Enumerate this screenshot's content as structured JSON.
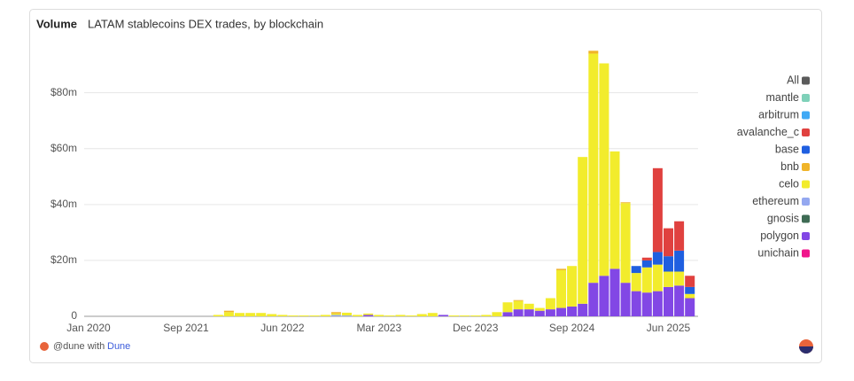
{
  "chart_data": {
    "type": "stacked_bar",
    "header": "Volume",
    "title": "LATAM stablecoins DEX trades, by blockchain",
    "x_axis_start_label": "Jan 2020",
    "categories": [
      "Sep 2021",
      null,
      null,
      null,
      null,
      null,
      null,
      null,
      null,
      "Jun 2022",
      null,
      null,
      null,
      null,
      null,
      null,
      null,
      null,
      "Mar 2023",
      null,
      null,
      null,
      null,
      null,
      null,
      null,
      null,
      "Dec 2023",
      null,
      null,
      null,
      null,
      null,
      null,
      null,
      null,
      "Sep 2024",
      null,
      null,
      null,
      null,
      null,
      null,
      null,
      null,
      "Jun 2025",
      null,
      null
    ],
    "ylim": [
      0,
      97
    ],
    "yticks": [
      0,
      {
        "value": 20,
        "label": "$20m"
      },
      {
        "value": 40,
        "label": "$40m"
      },
      {
        "value": 60,
        "label": "$60m"
      },
      {
        "value": 80,
        "label": "$80m"
      }
    ],
    "grid": true,
    "legend_position": "right",
    "legend_all": {
      "name": "All",
      "color": "#5b5b5b"
    },
    "series": [
      {
        "name": "mantle",
        "color": "#7fd1b9",
        "values": [
          0,
          0,
          0,
          0,
          0,
          0,
          0,
          0,
          0,
          0,
          0,
          0,
          0,
          0,
          0,
          0,
          0,
          0,
          0,
          0,
          0,
          0,
          0,
          0,
          0,
          0,
          0,
          0,
          0,
          0,
          0,
          0,
          0,
          0,
          0,
          0,
          0,
          0,
          0,
          0,
          0,
          0,
          0,
          0,
          0,
          0,
          0,
          0
        ]
      },
      {
        "name": "arbitrum",
        "color": "#3fa9f5",
        "values": [
          0,
          0,
          0,
          0,
          0,
          0,
          0,
          0,
          0,
          0,
          0,
          0,
          0,
          0,
          0,
          0,
          0,
          0,
          0,
          0,
          0,
          0,
          0,
          0,
          0,
          0,
          0,
          0,
          0,
          0,
          0,
          0,
          0,
          0,
          0,
          0,
          0,
          0,
          0,
          0,
          0,
          0,
          0,
          0,
          0,
          0,
          0,
          0
        ]
      },
      {
        "name": "avalanche_c",
        "color": "#e0413f",
        "values": [
          0,
          0,
          0,
          0,
          0,
          0,
          0,
          0,
          0,
          0,
          0,
          0,
          0,
          0,
          0,
          0,
          0,
          0,
          0,
          0,
          0,
          0,
          0,
          0,
          0,
          0,
          0,
          0,
          0,
          0,
          0,
          0,
          0,
          0,
          0,
          0,
          0,
          0,
          0,
          0,
          0,
          0,
          0,
          1,
          30,
          10,
          10.5,
          4
        ]
      },
      {
        "name": "base",
        "color": "#1f5fe0",
        "values": [
          0,
          0,
          0,
          0,
          0,
          0,
          0,
          0,
          0,
          0,
          0,
          0,
          0,
          0,
          0,
          0,
          0,
          0,
          0,
          0,
          0,
          0,
          0,
          0,
          0,
          0,
          0,
          0,
          0,
          0,
          0,
          0,
          0,
          0,
          0,
          0,
          0,
          0,
          0,
          0,
          0,
          0,
          2.5,
          2.5,
          4.5,
          5.5,
          7.5,
          2.5
        ]
      },
      {
        "name": "bnb",
        "color": "#f0b429",
        "values": [
          0,
          0,
          0,
          0,
          0.5,
          0,
          0,
          0,
          0,
          0,
          0,
          0,
          0,
          0,
          0.5,
          0,
          0,
          0,
          0,
          0,
          0,
          0,
          0,
          0,
          0,
          0,
          0,
          0,
          0,
          0,
          0,
          0.3,
          0,
          0,
          0,
          0.5,
          0,
          0,
          1,
          0,
          0,
          0.3,
          0,
          0,
          0,
          0,
          0,
          0
        ]
      },
      {
        "name": "celo",
        "color": "#f2ec2c",
        "values": [
          0,
          0,
          0,
          0.5,
          1.5,
          1.2,
          1.2,
          1.2,
          0.8,
          0.5,
          0.3,
          0.3,
          0.3,
          0.5,
          0.5,
          1,
          0.5,
          0.5,
          0.5,
          0.3,
          0.5,
          0.3,
          0.8,
          1.2,
          0,
          0.3,
          0.3,
          0.3,
          0.5,
          1.5,
          3.5,
          3,
          2,
          1,
          4,
          13.5,
          14.5,
          52.5,
          82,
          76,
          42,
          28.5,
          6.5,
          9,
          9.5,
          5.5,
          5,
          1.5
        ]
      },
      {
        "name": "ethereum",
        "color": "#94a8f0",
        "values": [
          0,
          0,
          0,
          0,
          0,
          0,
          0,
          0,
          0,
          0,
          0,
          0,
          0,
          0,
          0.5,
          0.3,
          0,
          0,
          0,
          0,
          0,
          0,
          0,
          0,
          0,
          0,
          0,
          0,
          0,
          0,
          0,
          0,
          0,
          0,
          0,
          0,
          0,
          0,
          0,
          0,
          0,
          0,
          0,
          0,
          0,
          0,
          0,
          0
        ]
      },
      {
        "name": "gnosis",
        "color": "#3e6b54",
        "values": [
          0,
          0,
          0,
          0,
          0,
          0,
          0,
          0,
          0,
          0,
          0,
          0,
          0,
          0,
          0,
          0,
          0,
          0,
          0,
          0,
          0,
          0,
          0,
          0,
          0,
          0,
          0,
          0,
          0,
          0,
          0,
          0,
          0,
          0,
          0,
          0,
          0,
          0,
          0,
          0,
          0,
          0,
          0,
          0,
          0,
          0,
          0,
          0
        ]
      },
      {
        "name": "polygon",
        "color": "#8247e5",
        "values": [
          0,
          0,
          0,
          0,
          0,
          0,
          0,
          0,
          0,
          0,
          0,
          0,
          0,
          0,
          0,
          0,
          0,
          0.5,
          0,
          0,
          0,
          0,
          0,
          0,
          0.5,
          0,
          0,
          0,
          0,
          0,
          1.5,
          2.5,
          2.5,
          2,
          2.5,
          3,
          3.5,
          4.5,
          12,
          14.5,
          17,
          12,
          9,
          8.5,
          9,
          10.5,
          11,
          6.5
        ]
      },
      {
        "name": "unichain",
        "color": "#f0168c",
        "values": [
          0,
          0,
          0,
          0,
          0,
          0,
          0,
          0,
          0,
          0,
          0,
          0,
          0,
          0,
          0,
          0,
          0,
          0,
          0,
          0,
          0,
          0,
          0,
          0,
          0,
          0,
          0,
          0,
          0,
          0,
          0,
          0,
          0,
          0,
          0,
          0,
          0,
          0,
          0,
          0,
          0,
          0,
          0,
          0,
          0,
          0,
          0,
          0
        ]
      }
    ],
    "footer": {
      "user": "@dune with",
      "brand": "Dune"
    }
  }
}
